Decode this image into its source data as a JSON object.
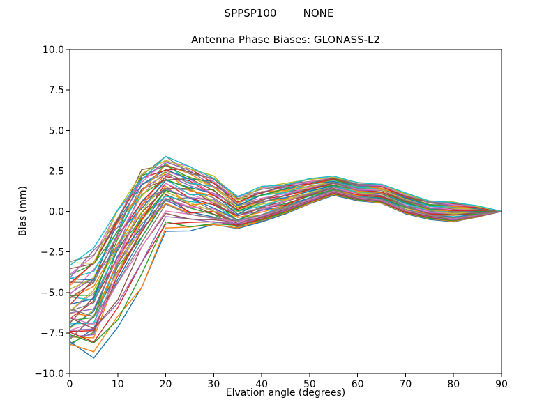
{
  "figure": {
    "suptitle": "SPPSP100        NONE",
    "background": "#ffffff"
  },
  "chart_data": {
    "type": "line",
    "title": "Antenna Phase Biases: GLONASS-L2",
    "xlabel": "Elvation angle (degrees)",
    "ylabel": "Bias (mm)",
    "xlim": [
      0,
      90
    ],
    "ylim": [
      -10,
      10
    ],
    "grid": false,
    "legend": "none",
    "xticks": [
      0,
      10,
      20,
      30,
      40,
      50,
      60,
      70,
      80,
      90
    ],
    "xtick_labels": [
      "0",
      "10",
      "20",
      "30",
      "40",
      "50",
      "60",
      "70",
      "80",
      "90"
    ],
    "yticks": [
      10,
      7.5,
      5,
      2.5,
      0,
      -2.5,
      -5,
      -7.5,
      -10
    ],
    "ytick_labels": [
      "10.0",
      "7.5",
      "5.0",
      "2.5",
      "0.0",
      "−2.5",
      "−5.0",
      "−7.5",
      "−10.0"
    ],
    "x": [
      0,
      5,
      10,
      15,
      20,
      25,
      30,
      35,
      40,
      45,
      50,
      55,
      60,
      65,
      70,
      75,
      80,
      85,
      90
    ],
    "n_series": 48,
    "bands": {
      "main": {
        "n": 40,
        "phase": 0,
        "min": [
          -8.4,
          -7.8,
          -4.2,
          -1.6,
          0.45,
          -0.1,
          -0.35,
          -1.0,
          -0.65,
          -0.15,
          0.45,
          1.0,
          0.65,
          0.5,
          -0.15,
          -0.5,
          -0.65,
          -0.35,
          0
        ],
        "max": [
          -3.1,
          -2.25,
          0.1,
          2.6,
          3.4,
          2.85,
          2.2,
          1.0,
          1.55,
          1.8,
          2.05,
          2.2,
          1.8,
          1.75,
          1.15,
          0.7,
          0.6,
          0.37,
          0
        ],
        "noise": [
          0.22,
          0.26,
          0.3,
          0.3,
          0.26,
          0.26,
          0.24,
          0.22,
          0.18,
          0.14,
          0.12,
          0.1,
          0.1,
          0.1,
          0.12,
          0.14,
          0.14,
          0.12,
          0
        ]
      },
      "laggard": {
        "n": 8,
        "phase": 2.1,
        "min": [
          -8.4,
          -9.05,
          -7.3,
          -4.9,
          -1.3,
          -1.2,
          -0.9,
          -1.05,
          -0.65,
          -0.15,
          0.45,
          1.0,
          0.65,
          0.5,
          -0.15,
          -0.5,
          -0.65,
          -0.35,
          0
        ],
        "max": [
          -6.0,
          -6.5,
          -4.2,
          -1.6,
          0.45,
          -0.1,
          -0.35,
          -0.55,
          -0.2,
          0.25,
          0.8,
          1.3,
          0.9,
          0.75,
          0.1,
          -0.2,
          -0.4,
          -0.2,
          0
        ],
        "noise": [
          0.3,
          0.3,
          0.3,
          0.3,
          0.3,
          0.3,
          0.3,
          0.25,
          0.2,
          0.15,
          0.12,
          0.1,
          0.1,
          0.1,
          0.12,
          0.14,
          0.14,
          0.12,
          0
        ]
      }
    },
    "palette": [
      "#1f77b4",
      "#ff7f0e",
      "#2ca02c",
      "#d62728",
      "#9467bd",
      "#8c564b",
      "#e377c2",
      "#7f7f7f",
      "#bcbd22",
      "#17becf"
    ],
    "line_width": 1.4,
    "axis_color": "#000000",
    "text_color": "#000000"
  }
}
